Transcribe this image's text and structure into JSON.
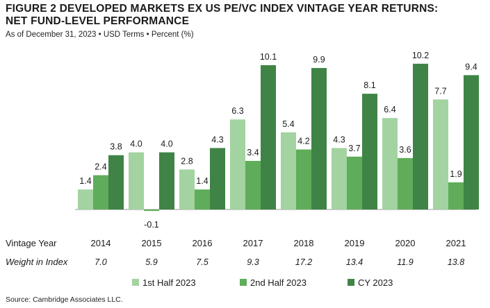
{
  "title_line1": "FIGURE 2   DEVELOPED MARKETS EX US PE/VC INDEX VINTAGE YEAR RETURNS:",
  "title_line2": "NET FUND-LEVEL PERFORMANCE",
  "subtitle": "As of December 31, 2023 • USD Terms • Percent (%)",
  "source": "Source: Cambridge Associates LLC.",
  "row_labels": {
    "vintage_year": "Vintage Year",
    "weight": "Weight in Index"
  },
  "chart_data": {
    "type": "bar",
    "categories": [
      "2014",
      "2015",
      "2016",
      "2017",
      "2018",
      "2019",
      "2020",
      "2021"
    ],
    "weights": [
      "7.0",
      "5.9",
      "7.5",
      "9.3",
      "17.2",
      "13.4",
      "11.9",
      "13.8"
    ],
    "series": [
      {
        "name": "1st Half 2023",
        "color": "#a3d3a0",
        "values": [
          1.4,
          4.0,
          2.8,
          6.3,
          5.4,
          4.3,
          6.4,
          7.7
        ]
      },
      {
        "name": "2nd Half 2023",
        "color": "#5fad5a",
        "values": [
          2.4,
          -0.1,
          1.4,
          3.4,
          4.2,
          3.7,
          3.6,
          1.9
        ]
      },
      {
        "name": "CY 2023",
        "color": "#3f8446",
        "values": [
          3.8,
          4.0,
          4.3,
          10.1,
          9.9,
          8.1,
          10.2,
          9.4
        ]
      }
    ],
    "ylim": [
      -0.5,
      11
    ],
    "legend": "bottom"
  }
}
